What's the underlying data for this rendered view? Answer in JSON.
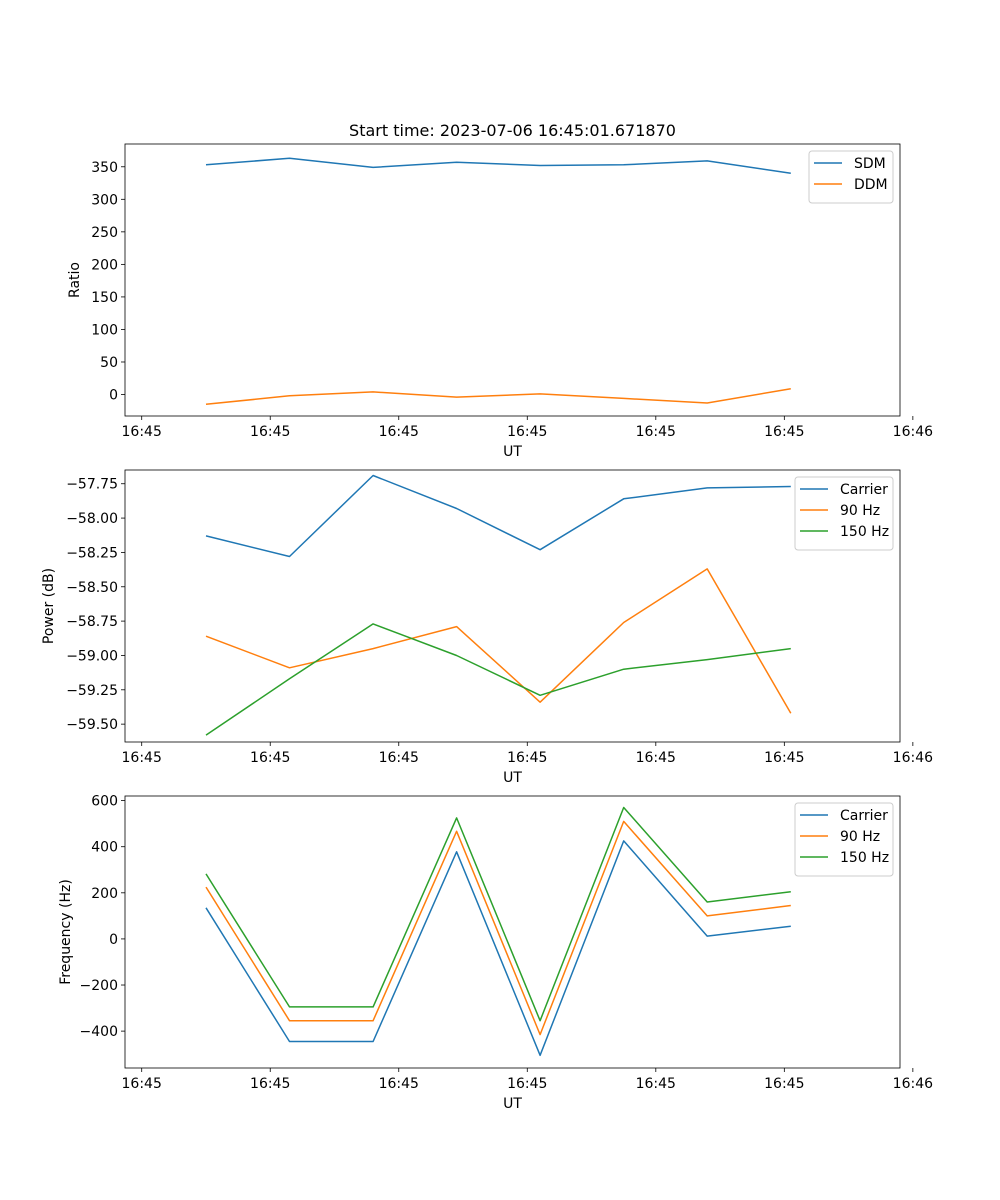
{
  "figure_title": "Start time: 2023-07-06 16:45:01.671870",
  "colors": {
    "c0": "#1f77b4",
    "c1": "#ff7f0e",
    "c2": "#2ca02c"
  },
  "chart_data": [
    {
      "type": "line",
      "title": "Start time: 2023-07-06 16:45:01.671870",
      "xlabel": "UT",
      "ylabel": "Ratio",
      "xlim": [
        -0.13,
        5.9
      ],
      "ylim": [
        -33,
        385
      ],
      "x": [
        0.5,
        1.15,
        1.8,
        2.45,
        3.1,
        3.75,
        4.4,
        5.05
      ],
      "x_ticks": [
        0,
        1,
        2,
        3,
        4,
        5,
        6
      ],
      "x_tick_labels": [
        "16:45",
        "16:45",
        "16:45",
        "16:45",
        "16:45",
        "16:45",
        "16:46"
      ],
      "y_ticks": [
        0,
        50,
        100,
        150,
        200,
        250,
        300,
        350
      ],
      "y_tick_labels": [
        "0",
        "50",
        "100",
        "150",
        "200",
        "250",
        "300",
        "350"
      ],
      "legend_position": "top-right",
      "series": [
        {
          "name": "SDM",
          "color": "#1f77b4",
          "values": [
            353,
            363,
            349,
            357,
            352,
            353,
            359,
            340
          ]
        },
        {
          "name": "DDM",
          "color": "#ff7f0e",
          "values": [
            -15,
            -2,
            4,
            -4,
            1,
            -6,
            -13,
            9
          ]
        }
      ]
    },
    {
      "type": "line",
      "title": "",
      "xlabel": "UT",
      "ylabel": "Power (dB)",
      "xlim": [
        -0.13,
        5.9
      ],
      "ylim": [
        -59.63,
        -57.65
      ],
      "x": [
        0.5,
        1.15,
        1.8,
        2.45,
        3.1,
        3.75,
        4.4,
        5.05
      ],
      "x_ticks": [
        0,
        1,
        2,
        3,
        4,
        5,
        6
      ],
      "x_tick_labels": [
        "16:45",
        "16:45",
        "16:45",
        "16:45",
        "16:45",
        "16:45",
        "16:46"
      ],
      "y_ticks": [
        -59.5,
        -59.25,
        -59.0,
        -58.75,
        -58.5,
        -58.25,
        -58.0,
        -57.75
      ],
      "y_tick_labels": [
        "−59.50",
        "−59.25",
        "−59.00",
        "−58.75",
        "−58.50",
        "−58.25",
        "−58.00",
        "−57.75"
      ],
      "legend_position": "top-right",
      "series": [
        {
          "name": "Carrier",
          "color": "#1f77b4",
          "values": [
            -58.13,
            -58.28,
            -57.69,
            -57.93,
            -58.23,
            -57.86,
            -57.78,
            -57.77
          ]
        },
        {
          "name": "90 Hz",
          "color": "#ff7f0e",
          "values": [
            -58.86,
            -59.09,
            -58.95,
            -58.79,
            -59.34,
            -58.76,
            -58.37,
            -59.42
          ]
        },
        {
          "name": "150 Hz",
          "color": "#2ca02c",
          "values": [
            -59.58,
            -59.17,
            -58.77,
            -59.0,
            -59.29,
            -59.1,
            -59.03,
            -58.95
          ]
        }
      ]
    },
    {
      "type": "line",
      "title": "",
      "xlabel": "UT",
      "ylabel": "Frequency (Hz)",
      "xlim": [
        -0.13,
        5.9
      ],
      "ylim": [
        -560,
        620
      ],
      "x": [
        0.5,
        1.15,
        1.8,
        2.45,
        3.1,
        3.75,
        4.4,
        5.05
      ],
      "x_ticks": [
        0,
        1,
        2,
        3,
        4,
        5,
        6
      ],
      "x_tick_labels": [
        "16:45",
        "16:45",
        "16:45",
        "16:45",
        "16:45",
        "16:45",
        "16:46"
      ],
      "y_ticks": [
        -400,
        -200,
        0,
        200,
        400,
        600
      ],
      "y_tick_labels": [
        "−400",
        "−200",
        "0",
        "200",
        "400",
        "600"
      ],
      "legend_position": "top-right",
      "series": [
        {
          "name": "Carrier",
          "color": "#1f77b4",
          "values": [
            135,
            -445,
            -445,
            378,
            -505,
            425,
            12,
            55
          ]
        },
        {
          "name": "90 Hz",
          "color": "#ff7f0e",
          "values": [
            225,
            -355,
            -355,
            467,
            -415,
            510,
            100,
            145
          ]
        },
        {
          "name": "150 Hz",
          "color": "#2ca02c",
          "values": [
            282,
            -295,
            -295,
            525,
            -355,
            570,
            160,
            205
          ]
        }
      ]
    }
  ]
}
